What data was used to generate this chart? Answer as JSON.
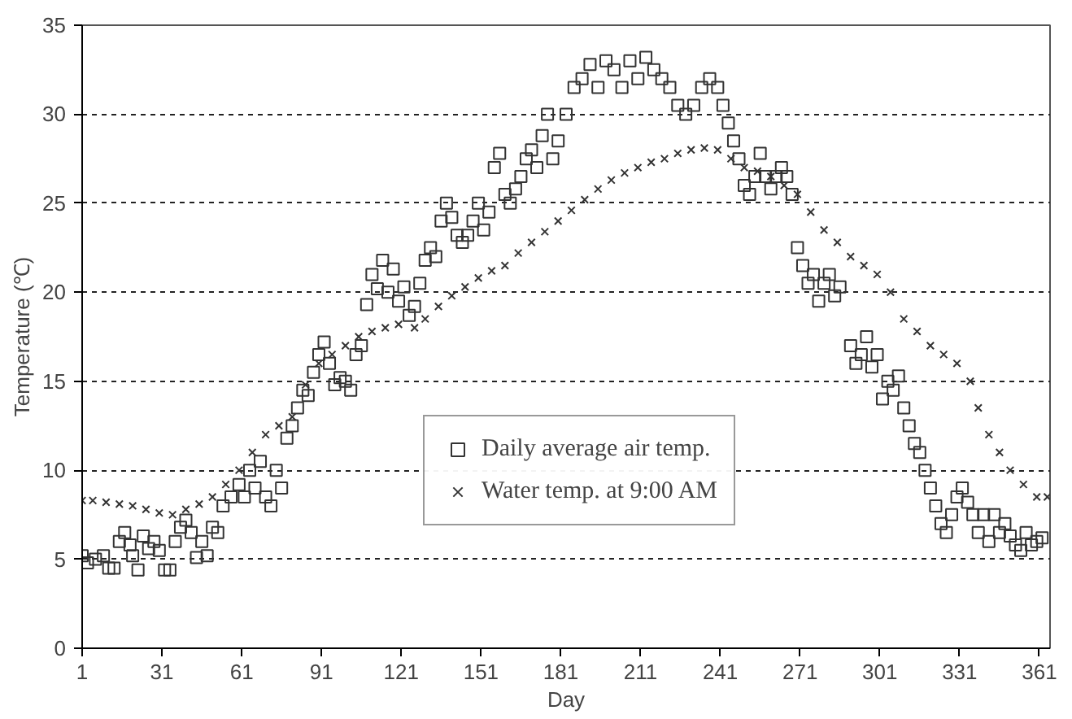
{
  "chart_data": {
    "type": "scatter",
    "xlabel": "Day",
    "ylabel": "Temperature (℃)",
    "xlim": [
      1,
      365
    ],
    "ylim": [
      0,
      35
    ],
    "xticks": [
      1,
      31,
      61,
      91,
      121,
      151,
      181,
      211,
      241,
      271,
      301,
      331,
      361
    ],
    "yticks": [
      0,
      5,
      10,
      15,
      20,
      25,
      30,
      35
    ],
    "grid": "y",
    "legend": "bottom",
    "series": [
      {
        "name": "Daily average air temp.",
        "color": "#333333",
        "marker": "square",
        "x": [
          1,
          3,
          6,
          9,
          11,
          13,
          15,
          17,
          19,
          20,
          22,
          24,
          26,
          28,
          30,
          32,
          34,
          36,
          38,
          40,
          42,
          44,
          46,
          48,
          50,
          52,
          54,
          57,
          60,
          62,
          64,
          66,
          68,
          70,
          72,
          74,
          76,
          78,
          80,
          82,
          84,
          86,
          88,
          90,
          92,
          94,
          96,
          98,
          100,
          102,
          104,
          106,
          108,
          110,
          112,
          114,
          116,
          118,
          120,
          122,
          124,
          126,
          128,
          130,
          132,
          134,
          136,
          138,
          140,
          142,
          144,
          146,
          148,
          150,
          152,
          154,
          156,
          158,
          160,
          162,
          164,
          166,
          168,
          170,
          172,
          174,
          176,
          178,
          180,
          183,
          186,
          189,
          192,
          195,
          198,
          201,
          204,
          207,
          210,
          213,
          216,
          219,
          222,
          225,
          228,
          231,
          234,
          237,
          240,
          242,
          244,
          246,
          248,
          250,
          252,
          254,
          256,
          258,
          260,
          262,
          264,
          266,
          268,
          270,
          272,
          274,
          276,
          278,
          280,
          282,
          284,
          286,
          290,
          292,
          294,
          296,
          298,
          300,
          302,
          304,
          306,
          308,
          310,
          312,
          314,
          316,
          318,
          320,
          322,
          324,
          326,
          328,
          330,
          332,
          334,
          336,
          338,
          340,
          342,
          344,
          346,
          348,
          350,
          352,
          354,
          356,
          358,
          360,
          362
        ],
        "values": [
          5.2,
          4.8,
          5,
          5.2,
          4.5,
          4.5,
          6,
          6.5,
          5.8,
          5.2,
          4.4,
          6.3,
          5.6,
          6,
          5.5,
          4.4,
          4.4,
          6,
          6.8,
          7.2,
          6.5,
          5.1,
          6,
          5.2,
          6.8,
          6.5,
          8,
          8.5,
          9.2,
          8.5,
          10,
          9,
          10.5,
          8.5,
          8,
          10,
          9,
          11.8,
          12.5,
          13.5,
          14.5,
          14.2,
          15.5,
          16.5,
          17.2,
          16,
          14.8,
          15.2,
          15,
          14.5,
          16.5,
          17,
          19.3,
          21,
          20.2,
          21.8,
          20,
          21.3,
          19.5,
          20.3,
          18.7,
          19.2,
          20.5,
          21.8,
          22.5,
          22,
          24,
          25,
          24.2,
          23.2,
          22.8,
          23.2,
          24,
          25,
          23.5,
          24.5,
          27,
          27.8,
          25.5,
          25,
          25.8,
          26.5,
          27.5,
          28,
          27,
          28.8,
          30,
          27.5,
          28.5,
          30,
          31.5,
          32,
          32.8,
          31.5,
          33,
          32.5,
          31.5,
          33,
          32,
          33.2,
          32.5,
          32,
          31.5,
          30.5,
          30,
          30.5,
          31.5,
          32,
          31.5,
          30.5,
          29.5,
          28.5,
          27.5,
          26,
          25.5,
          26.5,
          27.8,
          26.5,
          25.8,
          26.5,
          27,
          26.5,
          25.5,
          22.5,
          21.5,
          20.5,
          21,
          19.5,
          20.5,
          21,
          19.8,
          20.3,
          17,
          16,
          16.5,
          17.5,
          15.8,
          16.5,
          14,
          15,
          14.5,
          15.3,
          13.5,
          12.5,
          11.5,
          11,
          10,
          9,
          8,
          7,
          6.5,
          7.5,
          8.5,
          9,
          8.2,
          7.5,
          6.5,
          7.5,
          6,
          7.5,
          6.5,
          7,
          6.3,
          5.8,
          5.5,
          6.5,
          5.8,
          6,
          6.2
        ]
      },
      {
        "name": "Water temp. at 9:00 AM",
        "color": "#333333",
        "marker": "cross",
        "x": [
          1,
          5,
          10,
          15,
          20,
          25,
          30,
          35,
          40,
          45,
          50,
          55,
          60,
          65,
          70,
          75,
          80,
          85,
          90,
          95,
          100,
          105,
          110,
          115,
          120,
          126,
          130,
          135,
          140,
          145,
          150,
          155,
          160,
          165,
          170,
          175,
          180,
          185,
          190,
          195,
          200,
          205,
          210,
          215,
          220,
          225,
          230,
          235,
          240,
          245,
          250,
          255,
          260,
          265,
          270,
          275,
          280,
          285,
          290,
          295,
          300,
          305,
          310,
          315,
          320,
          325,
          330,
          335,
          338,
          342,
          346,
          350,
          355,
          360,
          364
        ],
        "values": [
          8.3,
          8.3,
          8.2,
          8.1,
          8,
          7.8,
          7.6,
          7.5,
          7.8,
          8.1,
          8.5,
          9.2,
          10,
          11,
          12,
          12.5,
          13,
          14.8,
          16,
          16.5,
          17,
          17.5,
          17.8,
          18,
          18.2,
          18,
          18.5,
          19.2,
          19.8,
          20.3,
          20.8,
          21.2,
          21.5,
          22.2,
          22.8,
          23.4,
          24,
          24.6,
          25.2,
          25.8,
          26.3,
          26.7,
          27,
          27.3,
          27.5,
          27.8,
          28,
          28.1,
          28,
          27.5,
          27,
          26.8,
          26.5,
          26,
          25.5,
          24.5,
          23.5,
          22.8,
          22,
          21.5,
          21,
          20,
          18.5,
          17.8,
          17,
          16.5,
          16,
          15,
          13.5,
          12,
          11,
          10,
          9.2,
          8.5,
          8.5
        ]
      }
    ]
  }
}
